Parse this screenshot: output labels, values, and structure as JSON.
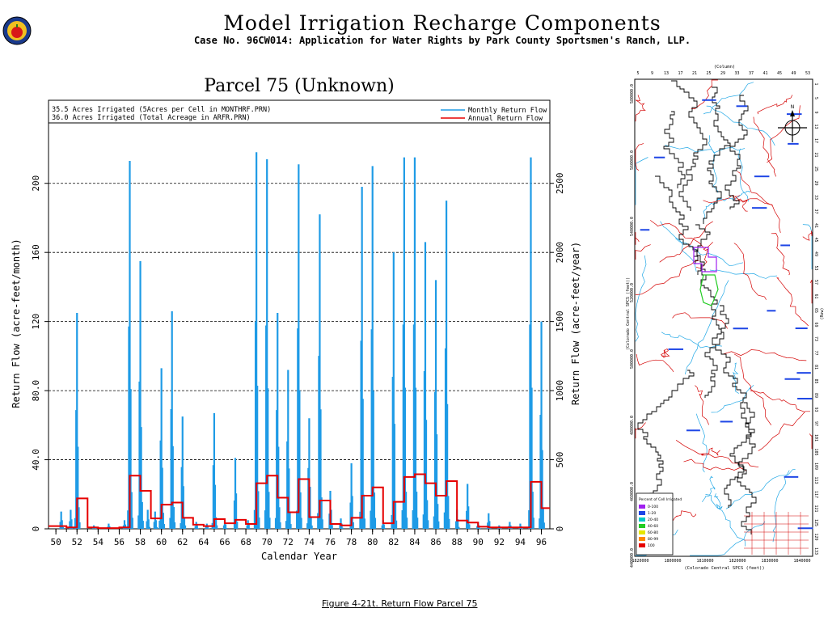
{
  "header": {
    "title": "Model Irrigation Recharge Components",
    "subtitle": "Case No. 96CW014: Application for Water Rights by Park County Sportsmen's Ranch, LLP."
  },
  "caption": "Figure 4-21t.  Return Flow Parcel 75",
  "colors": {
    "monthly": "#1e9be6",
    "annual": "#e60000",
    "map_river": "#22a8e6",
    "map_road": "#d40000",
    "map_parcel_outline": "#000000",
    "map_highlight_purple": "#a020f0",
    "map_highlight_green": "#22cc22",
    "map_label": "#1e46e6"
  },
  "chart_data": {
    "type": "bar",
    "title": "Parcel 75 (Unknown)",
    "notes": [
      "35.5 Acres Irrigated (5Acres per Cell in MONTHRF.PRN)",
      "36.0 Acres Irrigated (Total Acreage in ARFR.PRN)"
    ],
    "legend": {
      "position": "top-right",
      "entries": [
        "Monthly Return Flow",
        "Annual Return Flow"
      ]
    },
    "xlabel": "Calendar Year",
    "ylabel_left": "Return Flow (acre-feet/month)",
    "ylabel_right": "Return Flow (acre-feet/year)",
    "xlim": [
      1949.3,
      1996.8
    ],
    "ylim_left": [
      0,
      220
    ],
    "ylim_right": [
      0,
      2750
    ],
    "yticks_left": [
      "0",
      "40.0",
      "80.0",
      "120",
      "160",
      "200"
    ],
    "yticks_right": [
      "0",
      "500",
      "1000",
      "1500",
      "2000",
      "2500"
    ],
    "xticks": [
      "50",
      "52",
      "54",
      "56",
      "58",
      "60",
      "62",
      "64",
      "66",
      "68",
      "70",
      "72",
      "74",
      "76",
      "78",
      "80",
      "82",
      "84",
      "86",
      "88",
      "90",
      "92",
      "94",
      "96"
    ],
    "grid": "dashed horizontal",
    "series": [
      {
        "name": "Monthly Return Flow",
        "peaks": [
          [
            1950.5,
            10
          ],
          [
            1951.4,
            11
          ],
          [
            1952.0,
            125
          ],
          [
            1953.6,
            2
          ],
          [
            1955.0,
            3
          ],
          [
            1956.5,
            5
          ],
          [
            1957.0,
            213
          ],
          [
            1958.0,
            155
          ],
          [
            1958.7,
            11
          ],
          [
            1959.4,
            10
          ],
          [
            1960.0,
            93
          ],
          [
            1961.0,
            126
          ],
          [
            1962.0,
            65
          ],
          [
            1963.3,
            4
          ],
          [
            1964.3,
            3
          ],
          [
            1965.0,
            67
          ],
          [
            1966.0,
            5
          ],
          [
            1967.0,
            41
          ],
          [
            1968.2,
            5
          ],
          [
            1969.0,
            218
          ],
          [
            1970.0,
            214
          ],
          [
            1971.0,
            125
          ],
          [
            1972.0,
            92
          ],
          [
            1973.0,
            211
          ],
          [
            1974.0,
            64
          ],
          [
            1975.0,
            182
          ],
          [
            1976.0,
            22
          ],
          [
            1977.0,
            6
          ],
          [
            1978.0,
            38
          ],
          [
            1979.0,
            198
          ],
          [
            1980.0,
            210
          ],
          [
            1981.0,
            5
          ],
          [
            1982.0,
            160
          ],
          [
            1983.0,
            215
          ],
          [
            1984.0,
            215
          ],
          [
            1985.0,
            166
          ],
          [
            1986.0,
            144
          ],
          [
            1987.0,
            190
          ],
          [
            1988.0,
            11
          ],
          [
            1989.0,
            26
          ],
          [
            1990.0,
            4
          ],
          [
            1991.0,
            9
          ],
          [
            1992.0,
            2
          ],
          [
            1993.0,
            4
          ],
          [
            1994.0,
            3
          ],
          [
            1995.0,
            215
          ],
          [
            1996.0,
            120
          ]
        ]
      },
      {
        "name": "Annual Return Flow",
        "steps": [
          [
            1949.0,
            20
          ],
          [
            1950.0,
            20
          ],
          [
            1951.0,
            10
          ],
          [
            1952.0,
            220
          ],
          [
            1953.0,
            10
          ],
          [
            1954.0,
            5
          ],
          [
            1955.0,
            5
          ],
          [
            1956.0,
            10
          ],
          [
            1957.0,
            385
          ],
          [
            1958.0,
            275
          ],
          [
            1959.0,
            75
          ],
          [
            1960.0,
            175
          ],
          [
            1961.0,
            190
          ],
          [
            1962.0,
            80
          ],
          [
            1963.0,
            30
          ],
          [
            1964.0,
            20
          ],
          [
            1965.0,
            70
          ],
          [
            1966.0,
            40
          ],
          [
            1967.0,
            65
          ],
          [
            1968.0,
            35
          ],
          [
            1969.0,
            330
          ],
          [
            1970.0,
            385
          ],
          [
            1971.0,
            225
          ],
          [
            1972.0,
            120
          ],
          [
            1973.0,
            360
          ],
          [
            1974.0,
            85
          ],
          [
            1975.0,
            205
          ],
          [
            1976.0,
            35
          ],
          [
            1977.0,
            25
          ],
          [
            1978.0,
            80
          ],
          [
            1979.0,
            240
          ],
          [
            1980.0,
            300
          ],
          [
            1981.0,
            40
          ],
          [
            1982.0,
            195
          ],
          [
            1983.0,
            375
          ],
          [
            1984.0,
            395
          ],
          [
            1985.0,
            330
          ],
          [
            1986.0,
            240
          ],
          [
            1987.0,
            345
          ],
          [
            1988.0,
            60
          ],
          [
            1989.0,
            45
          ],
          [
            1990.0,
            15
          ],
          [
            1991.0,
            10
          ],
          [
            1992.0,
            10
          ],
          [
            1993.0,
            10
          ],
          [
            1994.0,
            10
          ],
          [
            1995.0,
            340
          ],
          [
            1996.0,
            150
          ],
          [
            1997.0,
            150
          ]
        ]
      }
    ]
  },
  "map": {
    "top_axis_label": "(Column)",
    "bottom_axis_label": "(Colorado Central SPCS (feet))",
    "left_axis_label": "(Colorado Central SPCS (feet))",
    "right_axis_label": "(Row)",
    "top_ticks": [
      "5",
      "9",
      "13",
      "17",
      "21",
      "25",
      "29",
      "33",
      "37",
      "41",
      "45",
      "49",
      "53"
    ],
    "bottom_ticks": [
      "1820000",
      "1800000",
      "1810000",
      "1820000",
      "1830000",
      "1840000"
    ],
    "left_ticks": [
      "580000.0",
      "560000.0",
      "540000.0",
      "520000.0",
      "500000.0",
      "480000.0",
      "460000.0",
      "440000.0"
    ],
    "legend_title": "Percent of Cell Irrigated",
    "legend_entries": [
      "0-100",
      "1-20",
      "20-40",
      "40-60",
      "60-80",
      "80-99",
      "100"
    ],
    "legend_colors": [
      "#a020f0",
      "#1e46e6",
      "#00c8c8",
      "#22cc22",
      "#e6e600",
      "#ff8800",
      "#e60000"
    ],
    "north_arrow": "N"
  }
}
